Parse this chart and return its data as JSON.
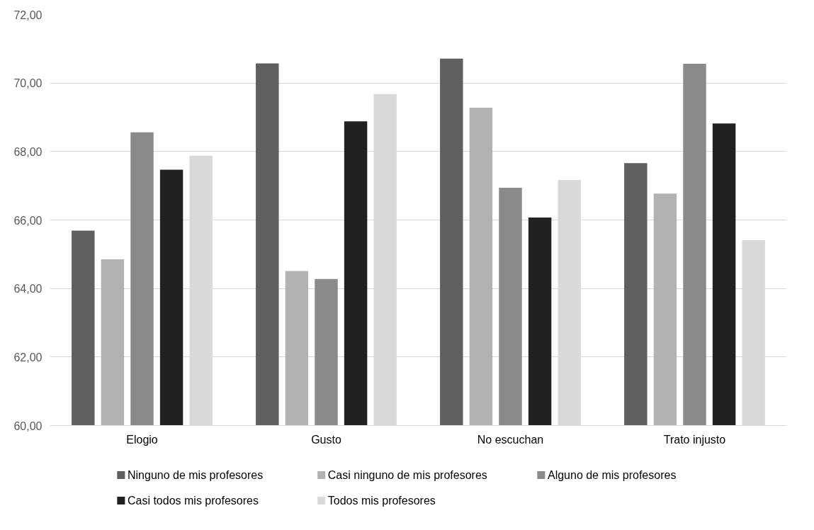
{
  "chart_data": {
    "type": "bar",
    "categories": [
      "Elogio",
      "Gusto",
      "No escuchan",
      "Trato injusto"
    ],
    "series": [
      {
        "name": "Ninguno de mis profesores",
        "color": "#5f5f5f",
        "values": [
          65.69,
          70.57,
          70.71,
          67.66
        ]
      },
      {
        "name": "Casi ninguno de mis profesores",
        "color": "#b2b2b2",
        "values": [
          64.85,
          64.51,
          69.28,
          66.77
        ]
      },
      {
        "name": "Alguno de mis profesores",
        "color": "#8a8a8a",
        "values": [
          68.56,
          64.28,
          66.94,
          70.56
        ]
      },
      {
        "name": "Casi todos mis profesores",
        "color": "#212121",
        "values": [
          67.47,
          68.88,
          66.07,
          68.82
        ]
      },
      {
        "name": "Todos mis profesores",
        "color": "#d9d9d9",
        "values": [
          67.88,
          69.68,
          67.17,
          65.41
        ]
      }
    ],
    "ylim": [
      60,
      72
    ],
    "yticks": [
      {
        "value": 60,
        "label": "60,00"
      },
      {
        "value": 62,
        "label": "62,00"
      },
      {
        "value": 64,
        "label": "64,00"
      },
      {
        "value": 66,
        "label": "66,00"
      },
      {
        "value": 68,
        "label": "68,00"
      },
      {
        "value": 70,
        "label": "70,00"
      },
      {
        "value": 72,
        "label": "72,00"
      }
    ],
    "grid": "y",
    "legend": "bottom"
  }
}
